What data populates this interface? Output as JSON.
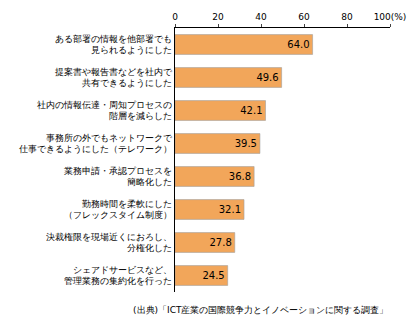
{
  "chart_data": {
    "type": "bar",
    "orientation": "horizontal",
    "categories": [
      "ある部署の情報を他部署でも\n見られるようにした",
      "提案書や報告書などを社内で\n共有できるようにした",
      "社内の情報伝達・周知プロセスの\n階層を減らした",
      "事務所の外でもネットワークで\n仕事できるようにした（テレワーク）",
      "業務申請・承認プロセスを\n簡略化した",
      "勤務時間を柔軟にした\n（フレックスタイム制度）",
      "決裁権限を現場近くにおろし、\n分権化した",
      "シェアドサービスなど、\n管理業務の集約化を行った"
    ],
    "values": [
      64.0,
      49.6,
      42.1,
      39.5,
      36.8,
      32.1,
      27.8,
      24.5
    ],
    "value_labels": [
      "64.0",
      "49.6",
      "42.1",
      "39.5",
      "36.8",
      "32.1",
      "27.8",
      "24.5"
    ],
    "data_labels": true,
    "color": "#f2a65a",
    "xlim": [
      0,
      100
    ],
    "xticks": [
      0,
      20,
      40,
      60,
      80,
      {
        "value": 100,
        "label": "100(%)"
      }
    ],
    "grid": false,
    "annotations": [
      "(出典)「ICT産業の国際競争力とイノベーションに関する調査」"
    ]
  }
}
